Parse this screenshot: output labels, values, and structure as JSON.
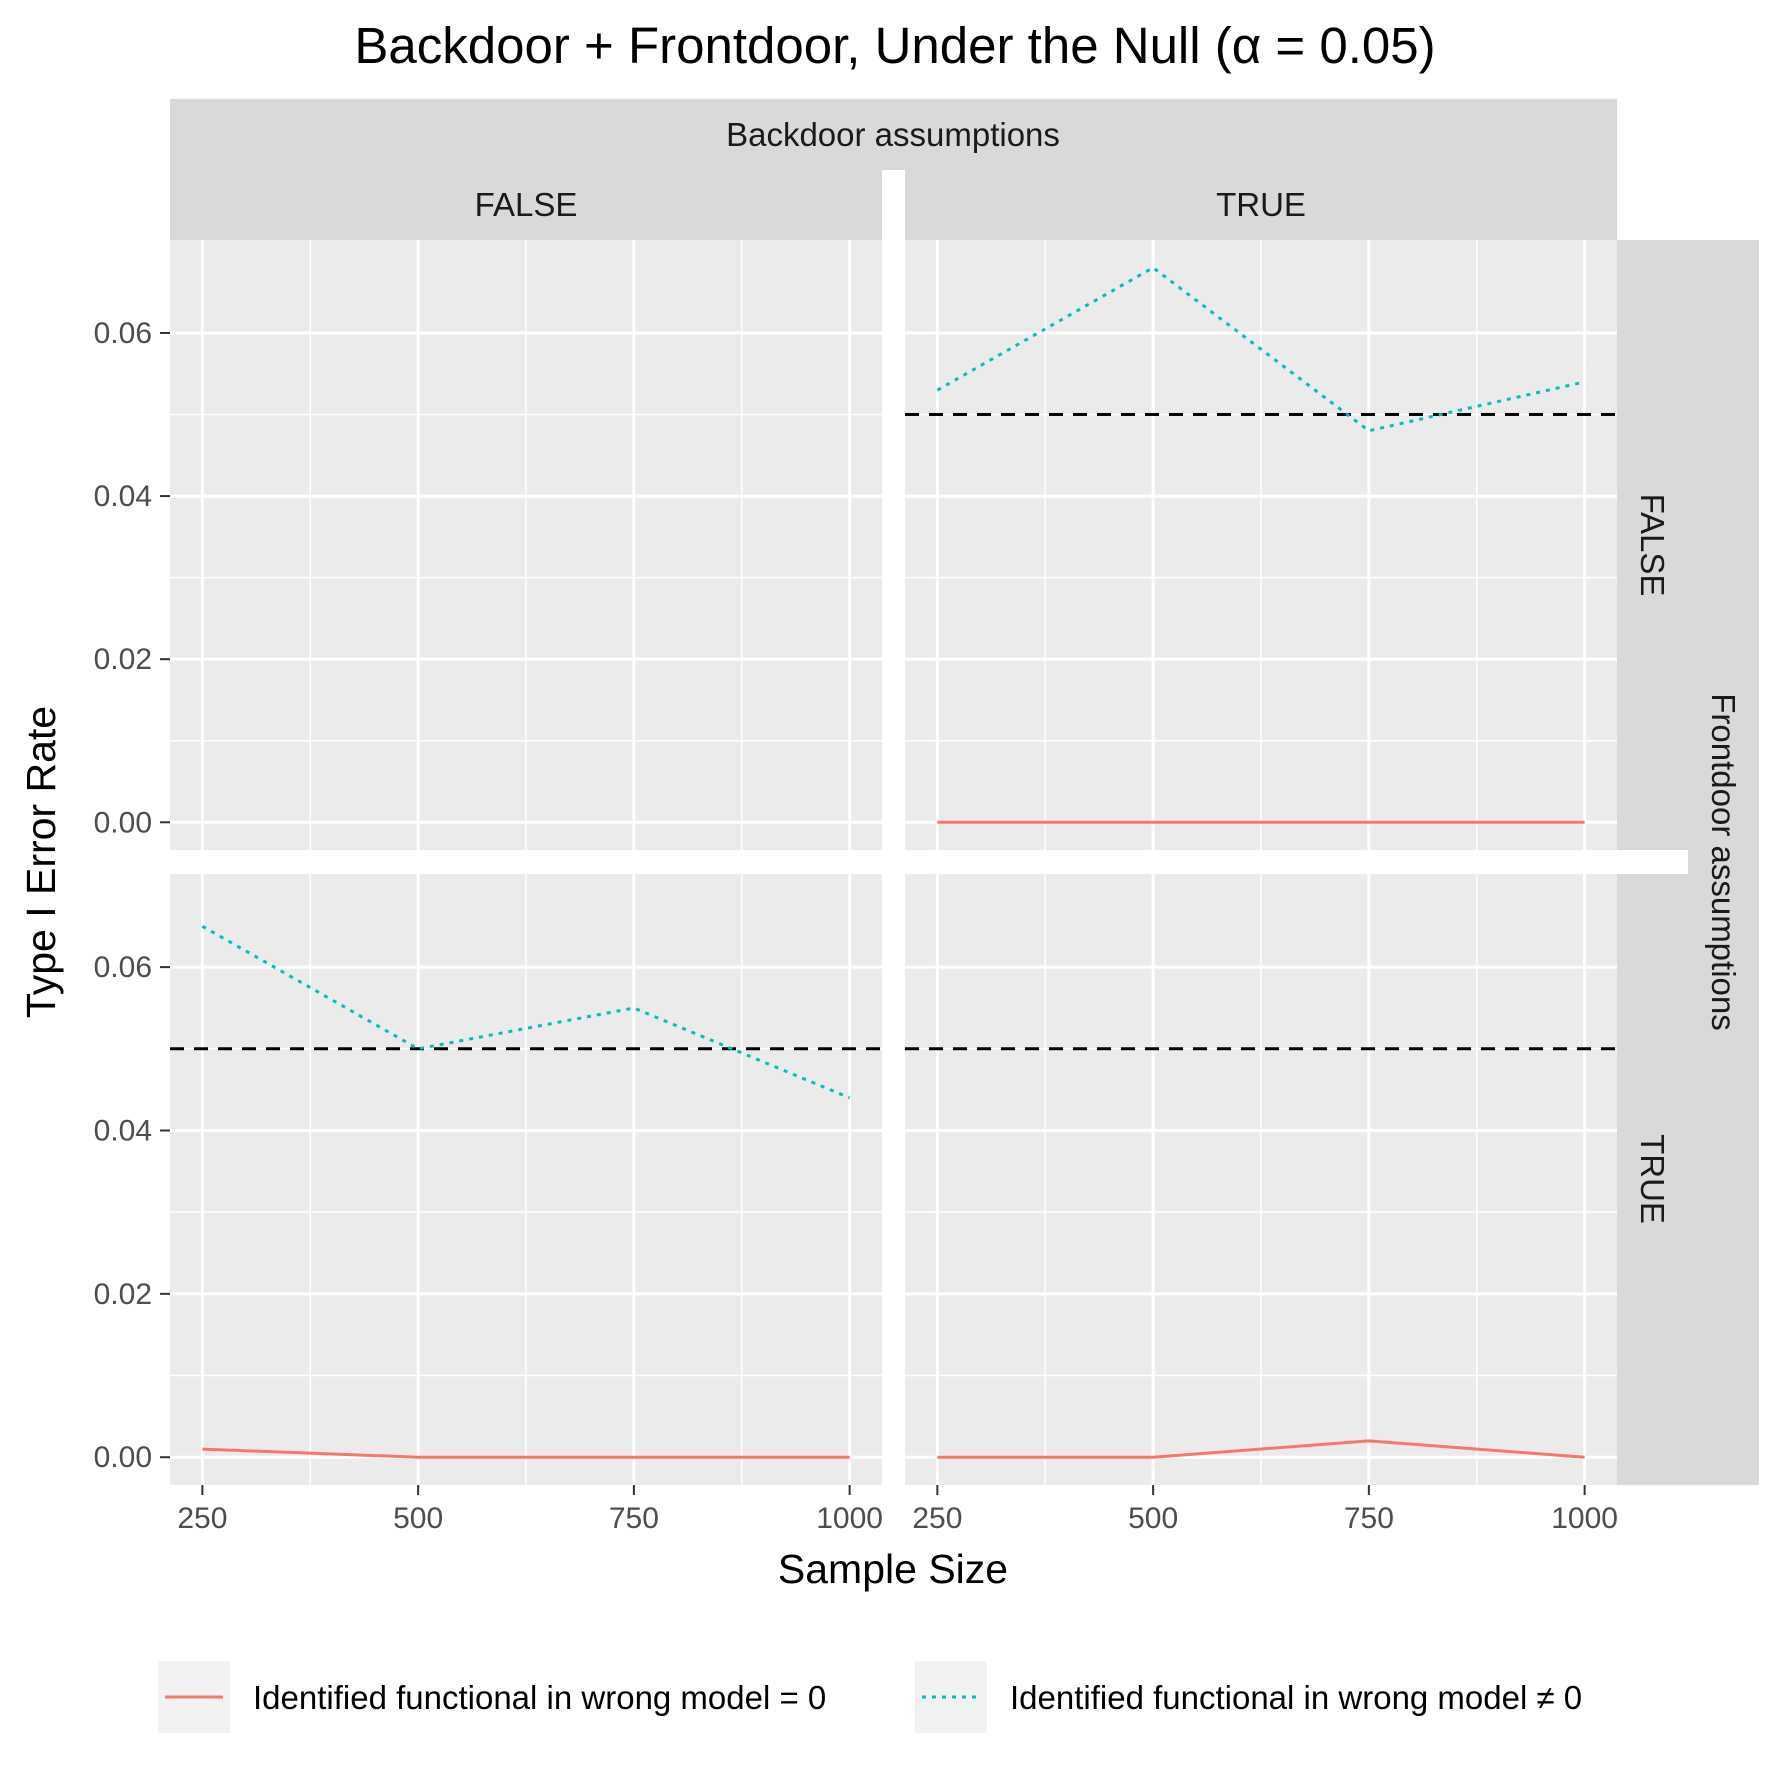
{
  "chart_data": {
    "type": "line",
    "title": "Backdoor + Frontdoor, Under the Null (α = 0.05)",
    "xlabel": "Sample Size",
    "ylabel": "Type I Error Rate",
    "col_facet_title": "Backdoor assumptions",
    "row_facet_title": "Frontdoor assumptions",
    "col_levels": [
      "FALSE",
      "TRUE"
    ],
    "row_levels": [
      "FALSE",
      "TRUE"
    ],
    "x_ticks": [
      250,
      500,
      750,
      1000
    ],
    "x_tick_labels": [
      "250",
      "500",
      "750",
      "1000"
    ],
    "xlim": [
      212.5,
      1037.5
    ],
    "y_ticks": [
      0,
      0.02,
      0.04,
      0.06
    ],
    "y_tick_labels": [
      "0.00",
      "0.02",
      "0.04",
      "0.06"
    ],
    "ylim": [
      -0.0034,
      0.0714
    ],
    "reference_line": 0.05,
    "grid": true,
    "legend_position": "bottom",
    "colors": {
      "series_a": "#F8766D",
      "series_b": "#00BFC4",
      "reference": "#000000",
      "panel": "#EBEBEB",
      "strip": "#D9D9D9"
    },
    "legend": [
      {
        "label": "Identified functional in wrong model = 0",
        "series": "a"
      },
      {
        "label": "Identified functional in wrong model ≠ 0",
        "series": "b"
      }
    ],
    "panels": [
      {
        "col": "FALSE",
        "row": "FALSE",
        "show_reference": false,
        "series": []
      },
      {
        "col": "TRUE",
        "row": "FALSE",
        "show_reference": true,
        "series": [
          {
            "key": "a",
            "x": [
              250,
              500,
              750,
              1000
            ],
            "y": [
              0,
              0,
              0,
              0
            ]
          },
          {
            "key": "b",
            "x": [
              250,
              500,
              750,
              1000
            ],
            "y": [
              0.053,
              0.068,
              0.048,
              0.054
            ]
          }
        ]
      },
      {
        "col": "FALSE",
        "row": "TRUE",
        "show_reference": true,
        "series": [
          {
            "key": "a",
            "x": [
              250,
              500,
              750,
              1000
            ],
            "y": [
              0.001,
              0,
              0,
              0
            ]
          },
          {
            "key": "b",
            "x": [
              250,
              500,
              750,
              1000
            ],
            "y": [
              0.065,
              0.05,
              0.055,
              0.044
            ]
          }
        ]
      },
      {
        "col": "TRUE",
        "row": "TRUE",
        "show_reference": true,
        "series": [
          {
            "key": "a",
            "x": [
              250,
              500,
              750,
              1000
            ],
            "y": [
              0,
              0,
              0.002,
              0
            ]
          }
        ]
      }
    ]
  }
}
